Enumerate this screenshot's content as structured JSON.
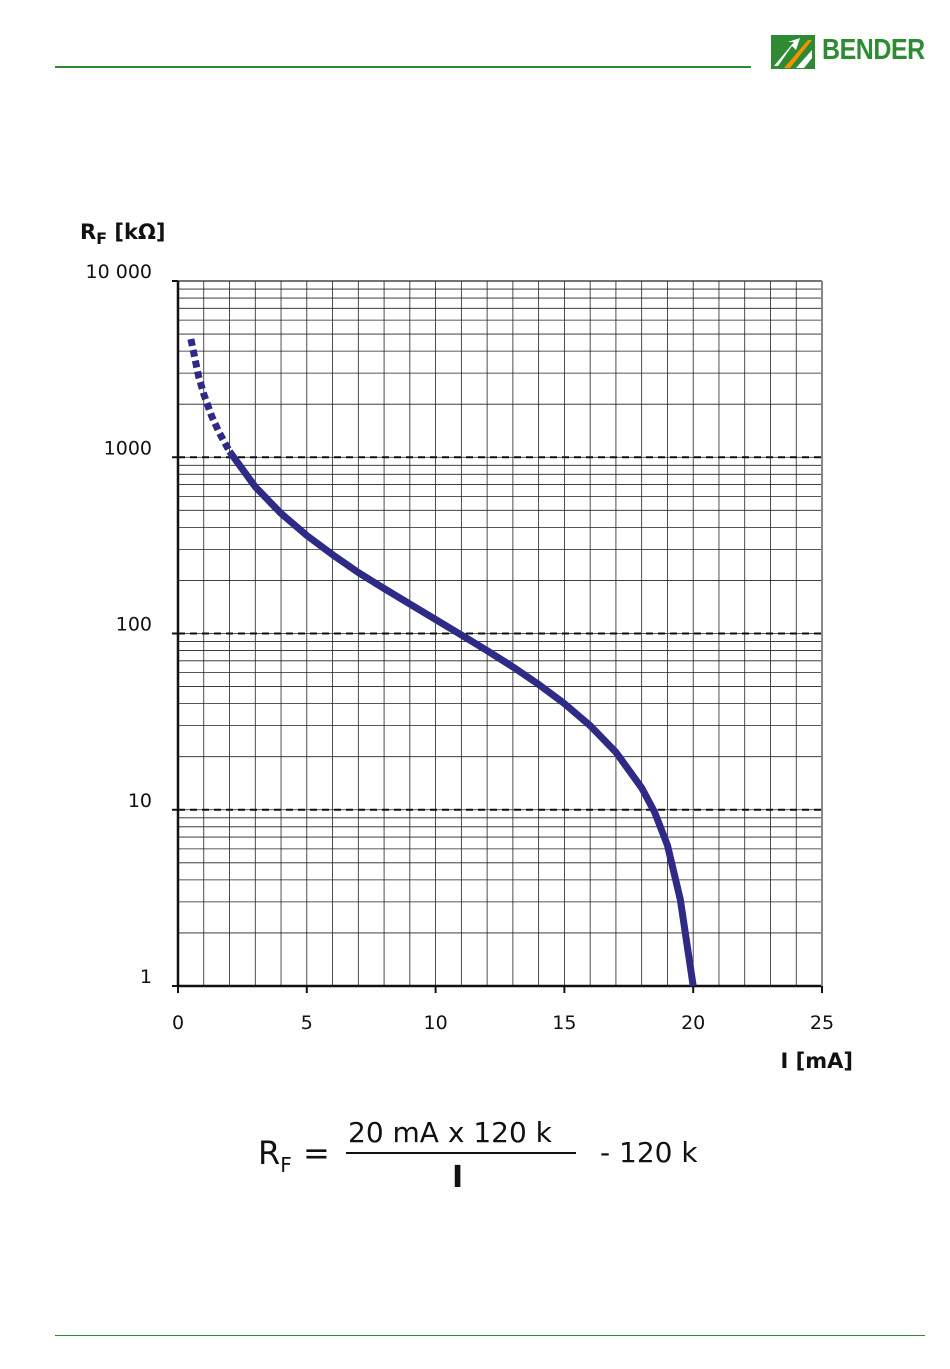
{
  "brand": {
    "name": "BENDER",
    "green": "#2e8b34",
    "orange": "#f39200"
  },
  "chart_data": {
    "type": "line",
    "ylabel_main": "R",
    "ylabel_sub": "F",
    "ylabel_unit": " [kΩ]",
    "xlabel": "I [mA]",
    "y_scale": "log",
    "xlim": [
      0,
      25
    ],
    "ylim": [
      1,
      10000
    ],
    "x_ticks": [
      0,
      5,
      10,
      15,
      20,
      25
    ],
    "x_tick_labels": [
      "0",
      "5",
      "10",
      "15",
      "20",
      "25"
    ],
    "y_ticks": [
      1,
      10,
      100,
      1000,
      10000
    ],
    "y_tick_labels": [
      "1",
      "10",
      "100",
      "1000",
      "10 000"
    ],
    "x_grid_step": 1,
    "grid": true,
    "dashed_gridlines_at": [
      10,
      100,
      1000
    ],
    "line_color": "#2e2a85",
    "series": [
      {
        "style": "dotted",
        "x": [
          0.5,
          0.8,
          1.0,
          1.3,
          1.6,
          2.0
        ],
        "y": [
          4680,
          2880,
          2280,
          1720,
          1380,
          1080
        ]
      },
      {
        "style": "solid",
        "x": [
          2.0,
          3.0,
          4.0,
          5.0,
          6.0,
          7.0,
          8.0,
          9.0,
          10.0,
          11.0,
          12.0,
          13.0,
          14.0,
          15.0,
          16.0,
          17.0,
          18.0,
          18.5,
          19.0,
          19.5,
          20.0
        ],
        "y": [
          1080,
          680,
          480,
          360,
          280,
          222,
          180,
          147,
          120,
          98,
          80,
          64.6,
          51.4,
          40,
          30,
          21.2,
          13.3,
          9.7,
          6.3,
          3.1,
          1
        ]
      }
    ]
  },
  "formula": {
    "lhs_main": "R",
    "lhs_sub": "F",
    "equals": "=",
    "numerator": "20 mA x 120 k",
    "denominator": "I",
    "subtract": "- 120 k"
  }
}
